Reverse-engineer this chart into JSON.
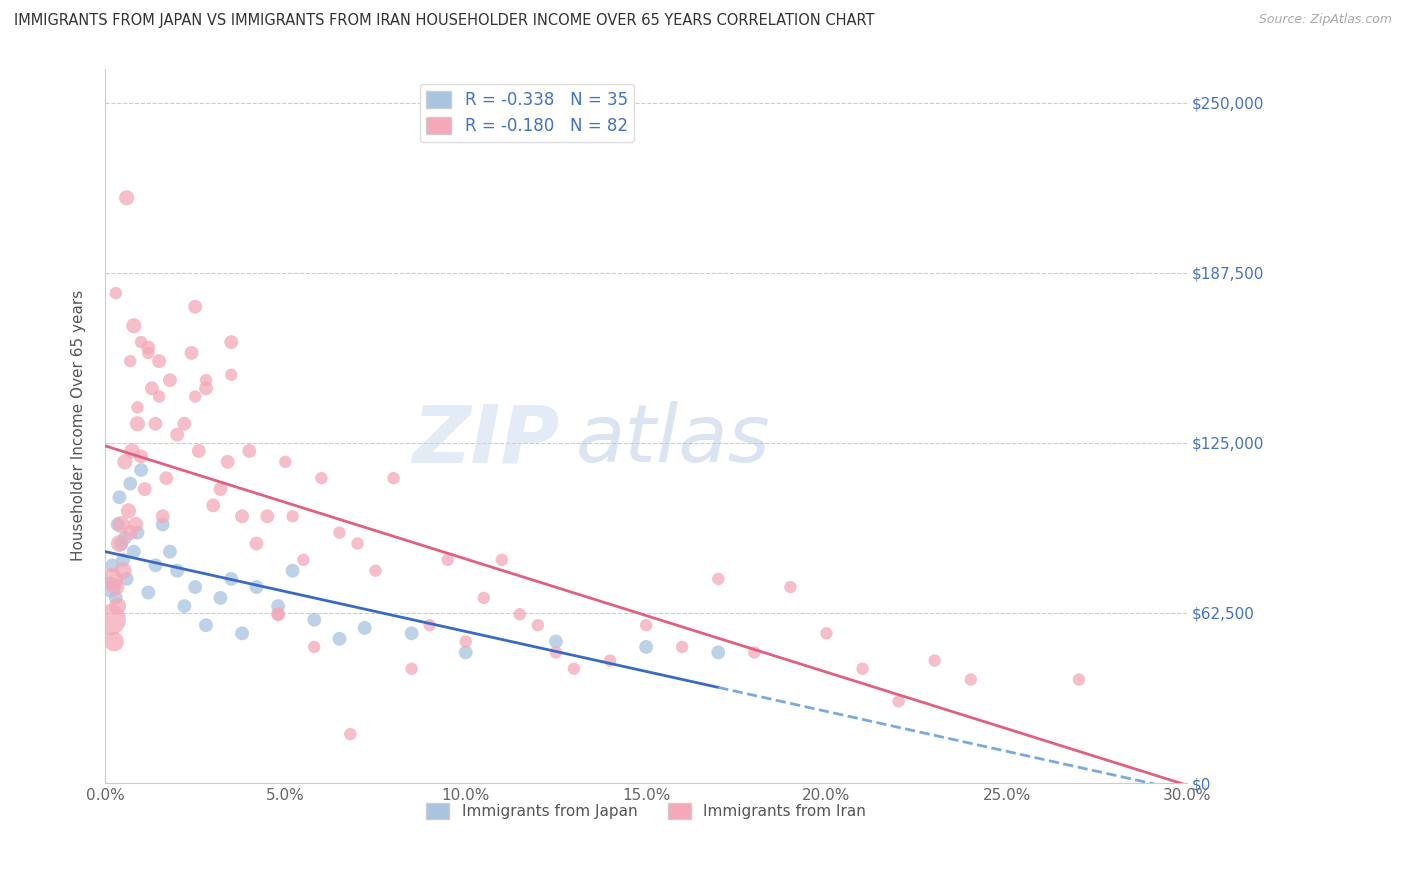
{
  "title": "IMMIGRANTS FROM JAPAN VS IMMIGRANTS FROM IRAN HOUSEHOLDER INCOME OVER 65 YEARS CORRELATION CHART",
  "source": "Source: ZipAtlas.com",
  "ylabel": "Householder Income Over 65 years",
  "ytick_labels": [
    "$0",
    "$62,500",
    "$125,000",
    "$187,500",
    "$250,000"
  ],
  "ytick_vals": [
    0,
    62500,
    125000,
    187500,
    250000
  ],
  "ylim": [
    0,
    262500
  ],
  "xlim": [
    0,
    30.0
  ],
  "xlabel_ticks": [
    "0.0%",
    "5.0%",
    "10.0%",
    "15.0%",
    "20.0%",
    "25.0%",
    "30.0%"
  ],
  "xlabel_vals": [
    0.0,
    5.0,
    10.0,
    15.0,
    20.0,
    25.0,
    30.0
  ],
  "japan_color": "#a8c4e0",
  "iran_color": "#f4a8b8",
  "japan_line_color": "#3a6bc4",
  "iran_line_color": "#e06080",
  "japan_R": -0.338,
  "japan_N": 35,
  "iran_R": -0.18,
  "iran_N": 82,
  "legend_label_japan": "Immigrants from Japan",
  "legend_label_iran": "Immigrants from Iran",
  "watermark_zip": "ZIP",
  "watermark_atlas": "atlas",
  "japan_points": [
    [
      0.15,
      72000
    ],
    [
      0.2,
      80000
    ],
    [
      0.3,
      68000
    ],
    [
      0.35,
      95000
    ],
    [
      0.4,
      105000
    ],
    [
      0.45,
      88000
    ],
    [
      0.5,
      82000
    ],
    [
      0.55,
      90000
    ],
    [
      0.6,
      75000
    ],
    [
      0.7,
      110000
    ],
    [
      0.8,
      85000
    ],
    [
      0.9,
      92000
    ],
    [
      1.0,
      115000
    ],
    [
      1.2,
      70000
    ],
    [
      1.4,
      80000
    ],
    [
      1.6,
      95000
    ],
    [
      1.8,
      85000
    ],
    [
      2.0,
      78000
    ],
    [
      2.2,
      65000
    ],
    [
      2.5,
      72000
    ],
    [
      2.8,
      58000
    ],
    [
      3.2,
      68000
    ],
    [
      3.5,
      75000
    ],
    [
      3.8,
      55000
    ],
    [
      4.2,
      72000
    ],
    [
      4.8,
      65000
    ],
    [
      5.2,
      78000
    ],
    [
      5.8,
      60000
    ],
    [
      6.5,
      53000
    ],
    [
      7.2,
      57000
    ],
    [
      8.5,
      55000
    ],
    [
      10.0,
      48000
    ],
    [
      12.5,
      52000
    ],
    [
      15.0,
      50000
    ],
    [
      17.0,
      48000
    ]
  ],
  "japan_sizes": [
    220,
    100,
    100,
    100,
    100,
    100,
    100,
    100,
    100,
    100,
    100,
    100,
    100,
    100,
    100,
    100,
    100,
    100,
    100,
    100,
    100,
    100,
    100,
    100,
    100,
    100,
    100,
    100,
    100,
    100,
    100,
    100,
    100,
    100,
    100
  ],
  "iran_points": [
    [
      0.15,
      60000
    ],
    [
      0.2,
      75000
    ],
    [
      0.25,
      52000
    ],
    [
      0.3,
      72000
    ],
    [
      0.35,
      65000
    ],
    [
      0.4,
      88000
    ],
    [
      0.45,
      95000
    ],
    [
      0.5,
      78000
    ],
    [
      0.55,
      118000
    ],
    [
      0.6,
      215000
    ],
    [
      0.65,
      100000
    ],
    [
      0.7,
      92000
    ],
    [
      0.75,
      122000
    ],
    [
      0.8,
      168000
    ],
    [
      0.85,
      95000
    ],
    [
      0.9,
      132000
    ],
    [
      1.0,
      120000
    ],
    [
      1.1,
      108000
    ],
    [
      1.2,
      160000
    ],
    [
      1.3,
      145000
    ],
    [
      1.4,
      132000
    ],
    [
      1.5,
      155000
    ],
    [
      1.6,
      98000
    ],
    [
      1.7,
      112000
    ],
    [
      1.8,
      148000
    ],
    [
      2.0,
      128000
    ],
    [
      2.2,
      132000
    ],
    [
      2.4,
      158000
    ],
    [
      2.5,
      175000
    ],
    [
      2.6,
      122000
    ],
    [
      2.8,
      145000
    ],
    [
      3.0,
      102000
    ],
    [
      3.2,
      108000
    ],
    [
      3.4,
      118000
    ],
    [
      3.5,
      162000
    ],
    [
      3.8,
      98000
    ],
    [
      4.0,
      122000
    ],
    [
      4.2,
      88000
    ],
    [
      4.5,
      98000
    ],
    [
      4.8,
      62000
    ],
    [
      5.0,
      118000
    ],
    [
      5.2,
      98000
    ],
    [
      5.5,
      82000
    ],
    [
      5.8,
      50000
    ],
    [
      6.0,
      112000
    ],
    [
      6.5,
      92000
    ],
    [
      6.8,
      18000
    ],
    [
      7.0,
      88000
    ],
    [
      7.5,
      78000
    ],
    [
      8.0,
      112000
    ],
    [
      8.5,
      42000
    ],
    [
      9.0,
      58000
    ],
    [
      9.5,
      82000
    ],
    [
      10.0,
      52000
    ],
    [
      10.5,
      68000
    ],
    [
      11.0,
      82000
    ],
    [
      11.5,
      62000
    ],
    [
      12.0,
      58000
    ],
    [
      12.5,
      48000
    ],
    [
      13.0,
      42000
    ],
    [
      14.0,
      45000
    ],
    [
      15.0,
      58000
    ],
    [
      16.0,
      50000
    ],
    [
      17.0,
      75000
    ],
    [
      18.0,
      48000
    ],
    [
      19.0,
      72000
    ],
    [
      20.0,
      55000
    ],
    [
      21.0,
      42000
    ],
    [
      22.0,
      30000
    ],
    [
      23.0,
      45000
    ],
    [
      24.0,
      38000
    ],
    [
      27.0,
      38000
    ],
    [
      0.3,
      180000
    ],
    [
      1.5,
      142000
    ],
    [
      2.8,
      148000
    ],
    [
      1.0,
      162000
    ],
    [
      3.5,
      150000
    ],
    [
      4.8,
      62000
    ],
    [
      2.5,
      142000
    ],
    [
      1.2,
      158000
    ],
    [
      0.7,
      155000
    ],
    [
      0.9,
      138000
    ]
  ],
  "iran_sizes": [
    500,
    250,
    200,
    150,
    150,
    150,
    150,
    150,
    120,
    120,
    120,
    120,
    120,
    120,
    120,
    120,
    100,
    100,
    100,
    100,
    100,
    100,
    100,
    100,
    100,
    100,
    100,
    100,
    100,
    100,
    100,
    100,
    100,
    100,
    100,
    100,
    100,
    100,
    100,
    100,
    80,
    80,
    80,
    80,
    80,
    80,
    80,
    80,
    80,
    80,
    80,
    80,
    80,
    80,
    80,
    80,
    80,
    80,
    80,
    80,
    80,
    80,
    80,
    80,
    80,
    80,
    80,
    80,
    80,
    80,
    80,
    80,
    80,
    80,
    80,
    80,
    80,
    80,
    80,
    80,
    80,
    80
  ]
}
